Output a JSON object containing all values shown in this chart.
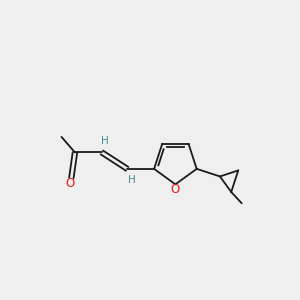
{
  "background_color": "#efefef",
  "bond_color": "#1a1a1a",
  "atom_O_color": "#ee1111",
  "atom_H_color": "#4a8a8a",
  "line_width": 1.3,
  "figsize": [
    3.0,
    3.0
  ],
  "dpi": 100,
  "xlim": [
    0.0,
    10.0
  ],
  "ylim": [
    1.5,
    8.5
  ]
}
